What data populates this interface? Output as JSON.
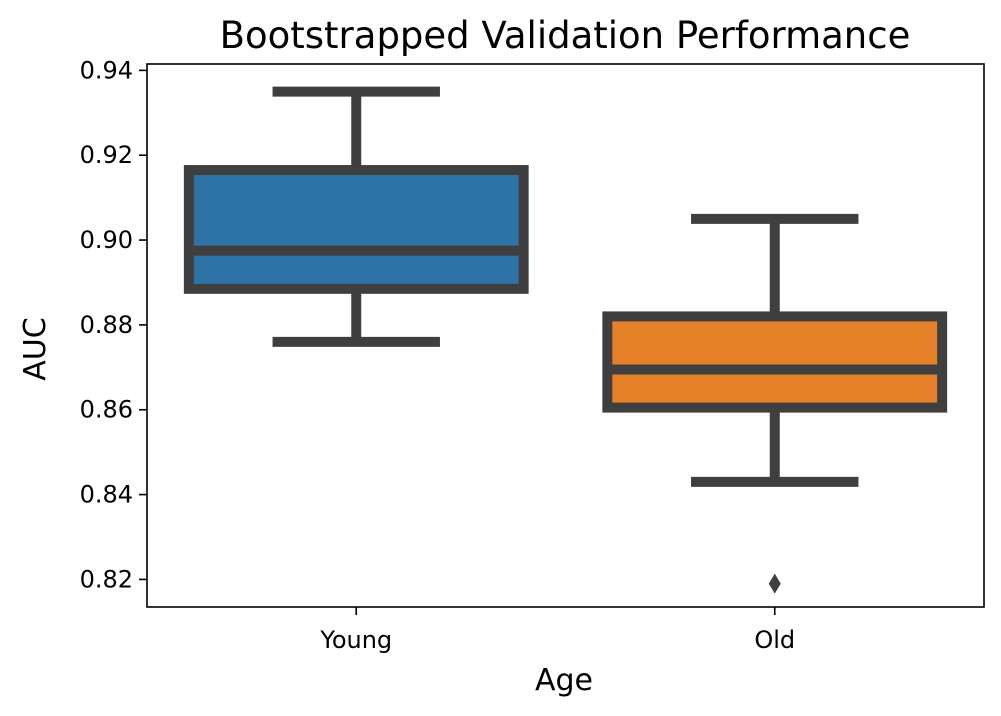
{
  "chart_data": {
    "type": "box",
    "title": "Bootstrapped Validation Performance",
    "xlabel": "Age",
    "ylabel": "AUC",
    "ylim": [
      0.8135,
      0.9415
    ],
    "yticks": [
      "0.82",
      "0.84",
      "0.86",
      "0.88",
      "0.90",
      "0.92",
      "0.94"
    ],
    "categories": [
      "Young",
      "Old"
    ],
    "boxes": [
      {
        "category": "Young",
        "whisker_low": 0.876,
        "q1": 0.8885,
        "median": 0.8975,
        "q3": 0.9165,
        "whisker_high": 0.935,
        "outliers": [],
        "color": "#2e73a6"
      },
      {
        "category": "Old",
        "whisker_low": 0.843,
        "q1": 0.8605,
        "median": 0.8695,
        "q3": 0.882,
        "whisker_high": 0.905,
        "outliers": [
          0.819
        ],
        "color": "#e6812a"
      }
    ],
    "line_color": "#3f3f3f",
    "grid": false,
    "legend": false
  }
}
